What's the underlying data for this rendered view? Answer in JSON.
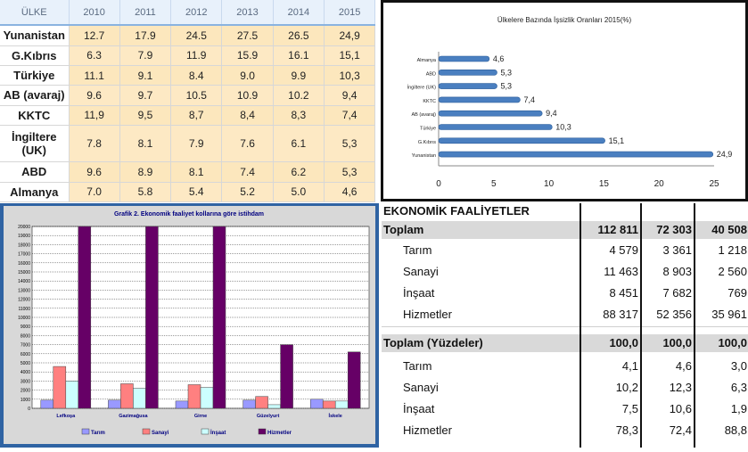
{
  "unemployment_table": {
    "header_country": "ÜLKE",
    "years": [
      "2010",
      "2011",
      "2012",
      "2013",
      "2014",
      "2015"
    ],
    "rows": [
      {
        "country": "Yunanistan",
        "values": [
          "12.7",
          "17.9",
          "24.5",
          "27.5",
          "26.5",
          "24,9"
        ]
      },
      {
        "country": "G.Kıbrıs",
        "values": [
          "6.3",
          "7.9",
          "11.9",
          "15.9",
          "16.1",
          "15,1"
        ]
      },
      {
        "country": "Türkiye",
        "values": [
          "11.1",
          "9.1",
          "8.4",
          "9.0",
          "9.9",
          "10,3"
        ]
      },
      {
        "country": "AB (avaraj)",
        "values": [
          "9.6",
          "9.7",
          "10.5",
          "10.9",
          "10.2",
          "9,4"
        ]
      },
      {
        "country": "KKTC",
        "values": [
          "11,9",
          "9,5",
          "8,7",
          "8,4",
          "8,3",
          "7,4"
        ]
      },
      {
        "country": "İngiltere (UK)",
        "values": [
          "7.8",
          "8.1",
          "7.9",
          "7.6",
          "6.1",
          "5,3"
        ]
      },
      {
        "country": "ABD",
        "values": [
          "9.6",
          "8.9",
          "8.1",
          "7.4",
          "6.2",
          "5,3"
        ]
      },
      {
        "country": "Almanya",
        "values": [
          "7.0",
          "5.8",
          "5.4",
          "5.2",
          "5.0",
          "4,6"
        ]
      }
    ]
  },
  "chart_data": [
    {
      "type": "bar",
      "orientation": "horizontal",
      "title": "Ülkelere Bazında İşsizlik Oranları 2015(%)",
      "categories": [
        "Almanya",
        "ABD",
        "İngiltere (UK)",
        "KKTC",
        "AB (avaraj)",
        "Türkiye",
        "G.Kıbrıs",
        "Yunanistan"
      ],
      "values": [
        4.6,
        5.3,
        5.3,
        7.4,
        9.4,
        10.3,
        15.1,
        24.9
      ],
      "data_labels": [
        "4,6",
        "5,3",
        "5,3",
        "7,4",
        "9,4",
        "10,3",
        "15,1",
        "24,9"
      ],
      "xlim": [
        0,
        25
      ],
      "xticks": [
        "0",
        "5",
        "10",
        "15",
        "20",
        "25"
      ],
      "grid": false,
      "bar_color": "#4a7fc0"
    },
    {
      "type": "bar",
      "title": "Grafik 2. Ekonomik faaliyet kollarına göre istihdam",
      "categories": [
        "Lefkoşa",
        "Gazimağusa",
        "Girne",
        "Güzelyurt",
        "İskele"
      ],
      "series": [
        {
          "name": "Tarım",
          "color": "#9999ff",
          "values": [
            900,
            900,
            800,
            900,
            1000
          ]
        },
        {
          "name": "Sanayi",
          "color": "#ff8080",
          "values": [
            4600,
            2700,
            2600,
            1300,
            800
          ]
        },
        {
          "name": "İnşaat",
          "color": "#ccffff",
          "values": [
            3000,
            2200,
            2300,
            400,
            800
          ]
        },
        {
          "name": "Hizmetler",
          "color": "#660066",
          "values": [
            20000,
            20000,
            20000,
            7000,
            6200
          ]
        }
      ],
      "ylim": [
        0,
        20000
      ],
      "yticks": [
        "0",
        "1000",
        "2000",
        "3000",
        "4000",
        "5000",
        "6000",
        "7000",
        "8000",
        "9000",
        "10000",
        "11000",
        "12000",
        "13000",
        "14000",
        "15000",
        "16000",
        "17000",
        "18000",
        "19000",
        "20000"
      ],
      "grid": true,
      "legend": "bottom"
    }
  ],
  "economic_table": {
    "header": "EKONOMİK FAALİYETLER",
    "rows": [
      {
        "label": "Toplam",
        "type": "total",
        "values": [
          "112 811",
          "72 303",
          "40 508"
        ]
      },
      {
        "label": "Tarım",
        "type": "sub",
        "values": [
          "4 579",
          "3 361",
          "1 218"
        ]
      },
      {
        "label": "Sanayi",
        "type": "sub",
        "values": [
          "11 463",
          "8 903",
          "2 560"
        ]
      },
      {
        "label": "İnşaat",
        "type": "sub",
        "values": [
          "8 451",
          "7 682",
          "769"
        ]
      },
      {
        "label": "Hizmetler",
        "type": "sub",
        "values": [
          "88 317",
          "52 356",
          "35 961"
        ]
      },
      {
        "label": "Toplam (Yüzdeler)",
        "type": "total",
        "values": [
          "100,0",
          "100,0",
          "100,0"
        ]
      },
      {
        "label": "Tarım",
        "type": "sub",
        "values": [
          "4,1",
          "4,6",
          "3,0"
        ]
      },
      {
        "label": "Sanayi",
        "type": "sub",
        "values": [
          "10,2",
          "12,3",
          "6,3"
        ]
      },
      {
        "label": "İnşaat",
        "type": "sub",
        "values": [
          "7,5",
          "10,6",
          "1,9"
        ]
      },
      {
        "label": "Hizmetler",
        "type": "sub",
        "values": [
          "78,3",
          "72,4",
          "88,8"
        ]
      }
    ]
  }
}
